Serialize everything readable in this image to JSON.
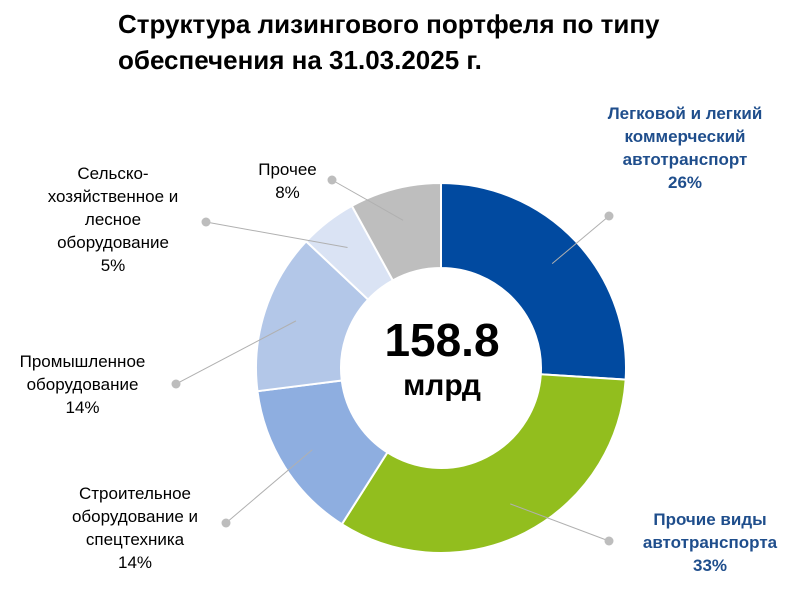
{
  "title_lines": [
    "Структура лизингового портфеля по типу",
    "обеспечения на 31.03.2025 г."
  ],
  "center": {
    "value": "158.8",
    "unit": "млрд"
  },
  "chart_data": {
    "type": "pie",
    "title": "Структура лизингового портфеля по типу обеспечения на 31.03.2025 г.",
    "donut": true,
    "total": "158.8 млрд",
    "slices": [
      {
        "label_lines": [
          "Легковой и легкий",
          "коммерческий",
          "автотранспорт"
        ],
        "pct_text": "26%",
        "value": 26,
        "color": "#014aa0",
        "label_color": "#1f4e8c"
      },
      {
        "label_lines": [
          "Прочие виды",
          "автотранспорта"
        ],
        "pct_text": "33%",
        "value": 33,
        "color": "#92be1e",
        "label_color": "#1f4e8c"
      },
      {
        "label_lines": [
          "Строительное",
          "оборудование  и",
          "спецтехника"
        ],
        "pct_text": "14%",
        "value": 14,
        "color": "#8eaee0",
        "label_color": "#000000"
      },
      {
        "label_lines": [
          "Промышленное",
          "оборудование"
        ],
        "pct_text": "14%",
        "value": 14,
        "color": "#b3c7e8",
        "label_color": "#000000"
      },
      {
        "label_lines": [
          "Сельско-",
          "хозяйственное  и",
          "лесное",
          "оборудование"
        ],
        "pct_text": "5%",
        "value": 5,
        "color": "#dae3f4",
        "label_color": "#000000"
      },
      {
        "label_lines": [
          "Прочее"
        ],
        "pct_text": "8%",
        "value": 8,
        "color": "#bebebe",
        "label_color": "#000000"
      }
    ]
  }
}
